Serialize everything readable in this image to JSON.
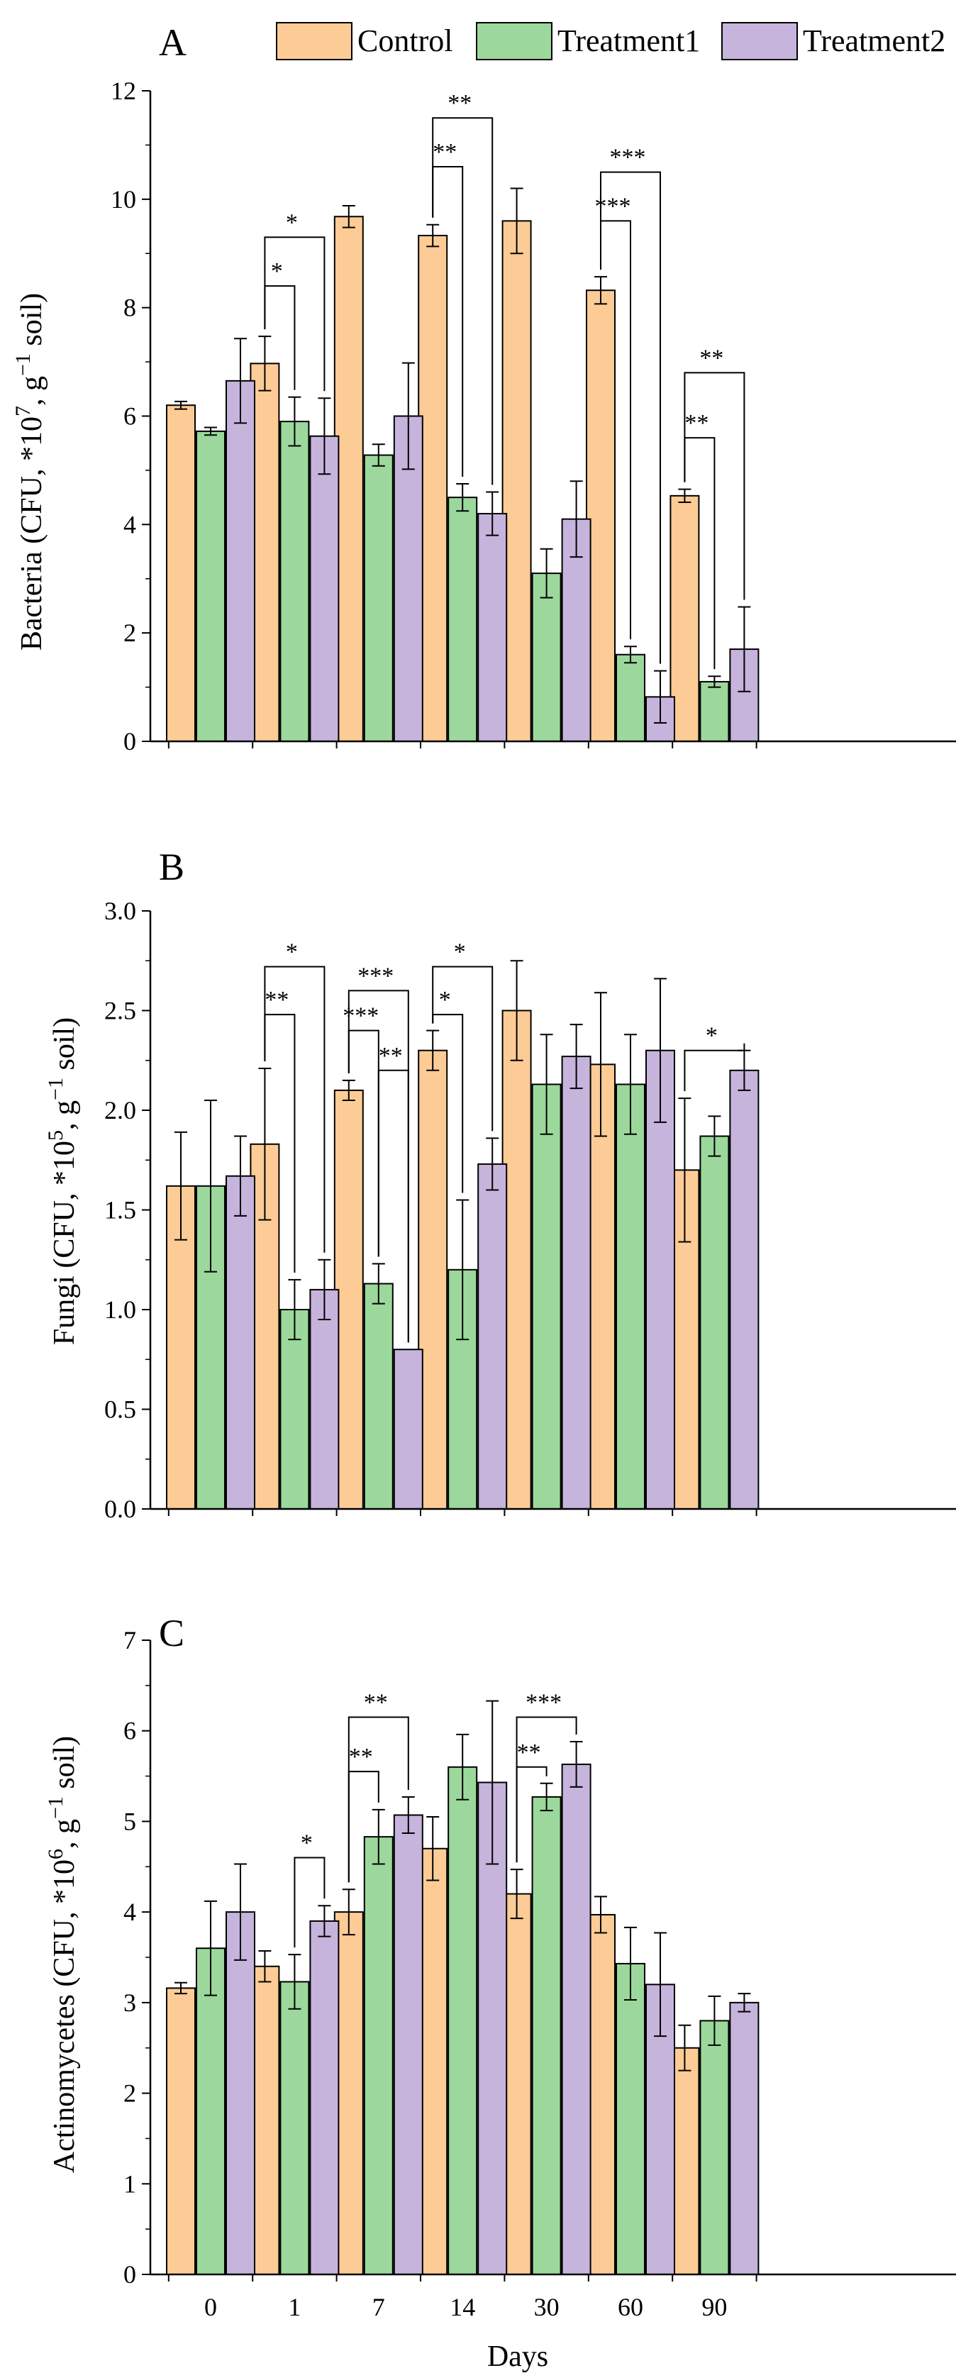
{
  "colors": {
    "control": "#fdcc96",
    "treatment1": "#9cd89c",
    "treatment2": "#c6b4dd"
  },
  "legend": [
    {
      "name": "Control",
      "color": "#fdcc96"
    },
    {
      "name": "Treatment1",
      "color": "#9cd89c"
    },
    {
      "name": "Treatment2",
      "color": "#c6b4dd"
    }
  ],
  "chart_data": [
    {
      "type": "bar",
      "panel": "A",
      "categories": [
        "0",
        "1",
        "7",
        "14",
        "30",
        "60",
        "90"
      ],
      "series": [
        {
          "name": "Control",
          "values": [
            6.2,
            6.97,
            9.68,
            9.33,
            9.6,
            8.32,
            4.53
          ],
          "errors": [
            0.07,
            0.5,
            0.2,
            0.2,
            0.6,
            0.25,
            0.12
          ]
        },
        {
          "name": "Treatment1",
          "values": [
            5.72,
            5.9,
            5.28,
            4.5,
            3.1,
            1.6,
            1.1
          ],
          "errors": [
            0.07,
            0.45,
            0.2,
            0.25,
            0.45,
            0.15,
            0.1
          ]
        },
        {
          "name": "Treatment2",
          "values": [
            6.65,
            5.63,
            6.0,
            4.2,
            4.1,
            0.82,
            1.7
          ],
          "errors": [
            0.78,
            0.7,
            0.98,
            0.4,
            0.7,
            0.48,
            0.78
          ]
        }
      ],
      "ylabel_main": "Bacteria (CFU, *10",
      "ylabel_exp": "7",
      "ylabel_mid": ", g",
      "ylabel_exp2": "−1",
      "ylabel_end": " soil)",
      "ylim": [
        0,
        12
      ],
      "yticks": [
        "0",
        "2",
        "4",
        "6",
        "8",
        "10",
        "12"
      ],
      "significance": [
        {
          "group": 1,
          "from": 0,
          "to": 1,
          "label": "*",
          "y": 8.4
        },
        {
          "group": 1,
          "from": 0,
          "to": 2,
          "label": "*",
          "y": 9.3
        },
        {
          "group": 3,
          "from": 0,
          "to": 1,
          "label": "**",
          "y": 10.6
        },
        {
          "group": 3,
          "from": 0,
          "to": 2,
          "label": "**",
          "y": 11.5
        },
        {
          "group": 5,
          "from": 0,
          "to": 1,
          "label": "***",
          "y": 9.6
        },
        {
          "group": 5,
          "from": 0,
          "to": 2,
          "label": "***",
          "y": 10.5
        },
        {
          "group": 6,
          "from": 0,
          "to": 1,
          "label": "**",
          "y": 5.6
        },
        {
          "group": 6,
          "from": 0,
          "to": 2,
          "label": "**",
          "y": 6.8
        }
      ]
    },
    {
      "type": "bar",
      "panel": "B",
      "categories": [
        "0",
        "1",
        "7",
        "14",
        "30",
        "60",
        "90"
      ],
      "series": [
        {
          "name": "Control",
          "values": [
            1.62,
            1.83,
            2.1,
            2.3,
            2.5,
            2.23,
            1.7
          ],
          "errors": [
            0.27,
            0.38,
            0.05,
            0.1,
            0.25,
            0.36,
            0.36
          ]
        },
        {
          "name": "Treatment1",
          "values": [
            1.62,
            1.0,
            1.13,
            1.2,
            2.13,
            2.13,
            1.87
          ],
          "errors": [
            0.43,
            0.15,
            0.1,
            0.35,
            0.25,
            0.25,
            0.1
          ]
        },
        {
          "name": "Treatment2",
          "values": [
            1.67,
            1.1,
            0.8,
            1.73,
            2.27,
            2.3,
            2.2
          ],
          "errors": [
            0.2,
            0.15,
            0.0,
            0.13,
            0.16,
            0.36,
            0.1
          ]
        }
      ],
      "ylabel_main": "Fungi (CFU, *10",
      "ylabel_exp": "5",
      "ylabel_mid": ", g",
      "ylabel_exp2": "−1",
      "ylabel_end": " soil)",
      "ylim": [
        0,
        3.0
      ],
      "yticks": [
        "0.0",
        "0.5",
        "1.0",
        "1.5",
        "2.0",
        "2.5",
        "3.0"
      ],
      "significance": [
        {
          "group": 1,
          "from": 0,
          "to": 1,
          "label": "**",
          "y": 2.48
        },
        {
          "group": 1,
          "from": 0,
          "to": 2,
          "label": "*",
          "y": 2.72
        },
        {
          "group": 2,
          "from": 0,
          "to": 1,
          "label": "***",
          "y": 2.4
        },
        {
          "group": 2,
          "from": 0,
          "to": 2,
          "label": "***",
          "y": 2.6
        },
        {
          "group": 2,
          "from": 1,
          "to": 2,
          "label": "**",
          "y": 2.2
        },
        {
          "group": 3,
          "from": 0,
          "to": 1,
          "label": "*",
          "y": 2.48
        },
        {
          "group": 3,
          "from": 0,
          "to": 2,
          "label": "*",
          "y": 2.72
        },
        {
          "group": 6,
          "from": 0,
          "to": 2,
          "label": "*",
          "y": 2.3
        }
      ]
    },
    {
      "type": "bar",
      "panel": "C",
      "categories": [
        "0",
        "1",
        "7",
        "14",
        "30",
        "60",
        "90"
      ],
      "series": [
        {
          "name": "Control",
          "values": [
            3.16,
            3.4,
            4.0,
            4.7,
            4.2,
            3.97,
            2.5
          ],
          "errors": [
            0.06,
            0.17,
            0.25,
            0.35,
            0.27,
            0.2,
            0.25
          ]
        },
        {
          "name": "Treatment1",
          "values": [
            3.6,
            3.23,
            4.83,
            5.6,
            5.27,
            3.43,
            2.8
          ],
          "errors": [
            0.52,
            0.3,
            0.3,
            0.36,
            0.15,
            0.4,
            0.27
          ]
        },
        {
          "name": "Treatment2",
          "values": [
            4.0,
            3.9,
            5.07,
            5.43,
            5.63,
            3.2,
            3.0
          ],
          "errors": [
            0.53,
            0.17,
            0.2,
            0.9,
            0.25,
            0.57,
            0.1
          ]
        }
      ],
      "ylabel_main": "Actinomycetes (CFU, *10",
      "ylabel_exp": "6",
      "ylabel_mid": ", g",
      "ylabel_exp2": "−1",
      "ylabel_end": " soil)",
      "ylim": [
        0,
        7
      ],
      "yticks": [
        "0",
        "1",
        "2",
        "3",
        "4",
        "5",
        "6",
        "7"
      ],
      "xlabel": "Days",
      "significance": [
        {
          "group": 1,
          "from": 1,
          "to": 2,
          "label": "*",
          "y": 4.6
        },
        {
          "group": 2,
          "from": 0,
          "to": 1,
          "label": "**",
          "y": 5.55
        },
        {
          "group": 2,
          "from": 0,
          "to": 2,
          "label": "**",
          "y": 6.15
        },
        {
          "group": 4,
          "from": 0,
          "to": 1,
          "label": "**",
          "y": 5.6
        },
        {
          "group": 4,
          "from": 0,
          "to": 2,
          "label": "***",
          "y": 6.15
        }
      ]
    }
  ]
}
